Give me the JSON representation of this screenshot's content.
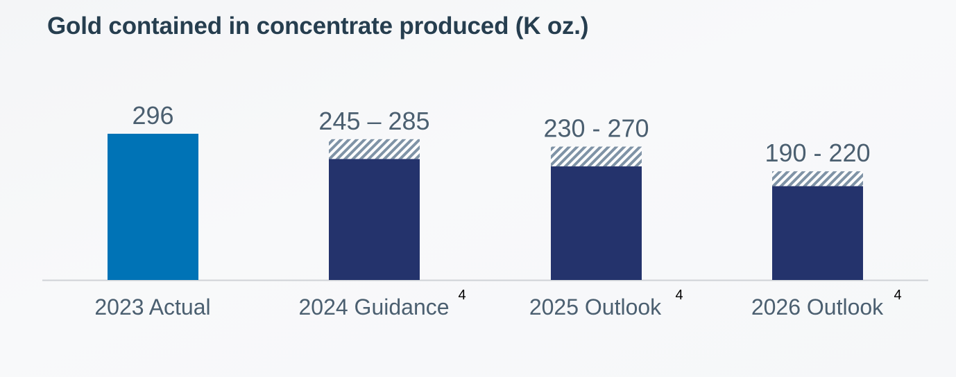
{
  "chart_data": {
    "type": "bar",
    "title": "Gold contained in concentrate produced (K oz.)",
    "categories": [
      "2023 Actual",
      "2024 Guidance",
      "2025 Outlook",
      "2026 Outlook"
    ],
    "category_notes": [
      "",
      "4",
      "4",
      "4"
    ],
    "values_low": [
      296,
      245,
      230,
      190
    ],
    "values_high": [
      296,
      285,
      270,
      220
    ],
    "value_labels": [
      "296",
      "245 – 285",
      "230 - 270",
      "190 - 220"
    ],
    "ylim": [
      0,
      330
    ],
    "grid": false,
    "legend": "none",
    "colors": {
      "actual": "#0073b6",
      "projected": "#24336c",
      "range_hatch": "#7f93a6",
      "baseline": "#cfd2d6",
      "label_text": "#4b5f70",
      "title_text": "#263e4f"
    }
  }
}
